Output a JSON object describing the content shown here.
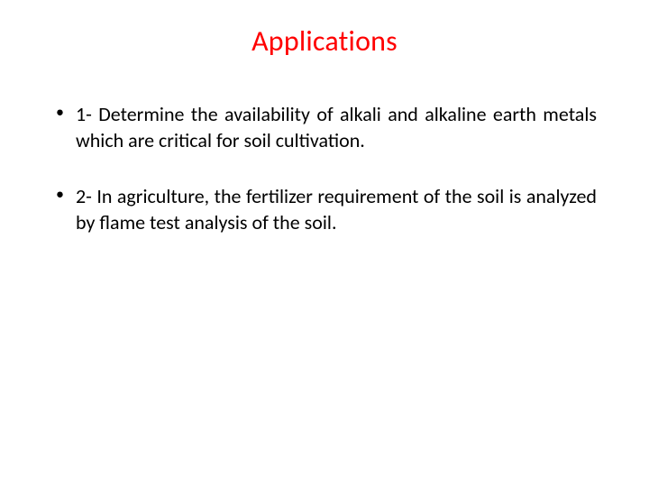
{
  "title": {
    "text": "Applications",
    "color": "#ff0000",
    "fontsize": 32
  },
  "bullets": [
    {
      "text": "1- Determine the availability of alkali and alkaline earth metals which are critical for soil cultivation."
    },
    {
      "text": "2- In agriculture, the fertilizer requirement of the soil is analyzed by flame test analysis of the soil."
    }
  ],
  "body_fontsize": 22,
  "body_color": "#000000",
  "background_color": "#ffffff"
}
